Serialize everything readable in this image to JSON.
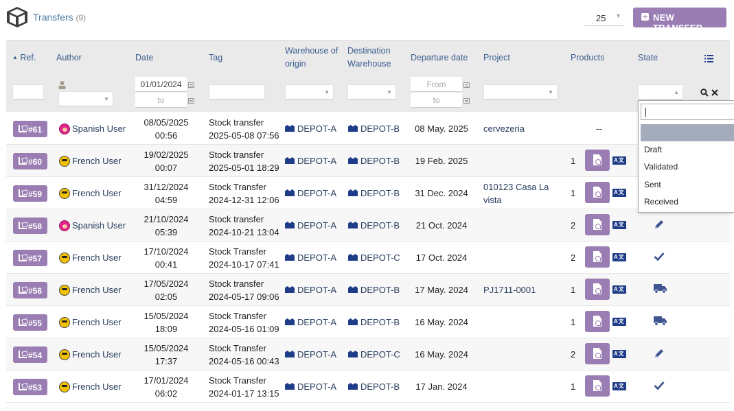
{
  "header": {
    "title": "Transfers",
    "count": "(9)",
    "page_size": "25",
    "new_button": "NEW TRANSFER"
  },
  "columns": {
    "ref": "Ref.",
    "author": "Author",
    "date": "Date",
    "tag": "Tag",
    "origin_l1": "Warehouse of",
    "origin_l2": "origin",
    "dest_l1": "Destination",
    "dest_l2": "Warehouse",
    "departure": "Departure date",
    "project": "Project",
    "products": "Products",
    "state": "State"
  },
  "filters": {
    "date_from": "01/01/2024",
    "date_to_placeholder": "to",
    "departure_from_placeholder": "From",
    "departure_to_placeholder": "to"
  },
  "rows": [
    {
      "ref": "#61",
      "author": "Spanish User",
      "author_flag": "es",
      "date": "08/05/2025",
      "time": "00:56",
      "tag": "Stock transfer",
      "tag2": "2025-05-08 07:56",
      "origin": "DEPOT-A",
      "dest": "DEPOT-B",
      "departure": "08 May. 2025",
      "project": "cervezeria",
      "project2": "",
      "products": "--",
      "state_icon": ""
    },
    {
      "ref": "#60",
      "author": "French User",
      "author_flag": "fr",
      "date": "19/02/2025",
      "time": "00:07",
      "tag": "Stock transfer",
      "tag2": "2025-05-01 18:29",
      "origin": "DEPOT-A",
      "dest": "DEPOT-B",
      "departure": "19 Feb. 2025",
      "project": "",
      "project2": "",
      "products": "1",
      "state_icon": ""
    },
    {
      "ref": "#59",
      "author": "French User",
      "author_flag": "fr",
      "date": "31/12/2024",
      "time": "04:59",
      "tag": "Stock Transfer",
      "tag2": "2024-12-31 12:06",
      "origin": "DEPOT-A",
      "dest": "DEPOT-B",
      "departure": "31 Dec. 2024",
      "project": "010123 Casa La",
      "project2": "vista",
      "products": "1",
      "state_icon": ""
    },
    {
      "ref": "#58",
      "author": "Spanish User",
      "author_flag": "es",
      "date": "21/10/2024",
      "time": "05:39",
      "tag": "Stock transfer",
      "tag2": "2024-10-21 13:04",
      "origin": "DEPOT-A",
      "dest": "DEPOT-B",
      "departure": "21 Oct. 2024",
      "project": "",
      "project2": "",
      "products": "2",
      "state_icon": "pencil-icon"
    },
    {
      "ref": "#57",
      "author": "French User",
      "author_flag": "fr",
      "date": "17/10/2024",
      "time": "00:41",
      "tag": "Stock Transfer",
      "tag2": "2024-10-17 07:41",
      "origin": "DEPOT-A",
      "dest": "DEPOT-C",
      "departure": "17 Oct. 2024",
      "project": "",
      "project2": "",
      "products": "2",
      "state_icon": "check-icon"
    },
    {
      "ref": "#56",
      "author": "French User",
      "author_flag": "fr",
      "date": "17/05/2024",
      "time": "02:05",
      "tag": "Stock transfer",
      "tag2": "2024-05-17 09:06",
      "origin": "DEPOT-A",
      "dest": "DEPOT-B",
      "departure": "17 May. 2024",
      "project": "PJ1711-0001",
      "project2": "",
      "products": "1",
      "state_icon": "truck-icon"
    },
    {
      "ref": "#55",
      "author": "French User",
      "author_flag": "fr",
      "date": "15/05/2024",
      "time": "18:09",
      "tag": "Stock Transfer",
      "tag2": "2024-05-16 01:09",
      "origin": "DEPOT-A",
      "dest": "DEPOT-B",
      "departure": "16 May. 2024",
      "project": "",
      "project2": "",
      "products": "1",
      "state_icon": "truck-icon"
    },
    {
      "ref": "#54",
      "author": "French User",
      "author_flag": "fr",
      "date": "15/05/2024",
      "time": "17:37",
      "tag": "Stock Transfer",
      "tag2": "2024-05-16 00:43",
      "origin": "DEPOT-A",
      "dest": "DEPOT-C",
      "departure": "16 May. 2024",
      "project": "",
      "project2": "",
      "products": "2",
      "state_icon": "pencil-icon"
    },
    {
      "ref": "#53",
      "author": "French User",
      "author_flag": "fr",
      "date": "17/01/2024",
      "time": "06:02",
      "tag": "Stock Transfer",
      "tag2": "2024-01-17 13:15",
      "origin": "DEPOT-A",
      "dest": "DEPOT-B",
      "departure": "17 Jan. 2024",
      "project": "",
      "project2": "",
      "products": "1",
      "state_icon": "check-icon"
    }
  ],
  "state_dropdown": {
    "search_value": "",
    "options": [
      "",
      "Draft",
      "Validated",
      "Sent",
      "Received"
    ]
  },
  "icons": {
    "translate_label": "A文"
  },
  "colors": {
    "accent": "#9a7eb3",
    "link": "#1f3c88",
    "header_bg": "#eaeaea"
  }
}
